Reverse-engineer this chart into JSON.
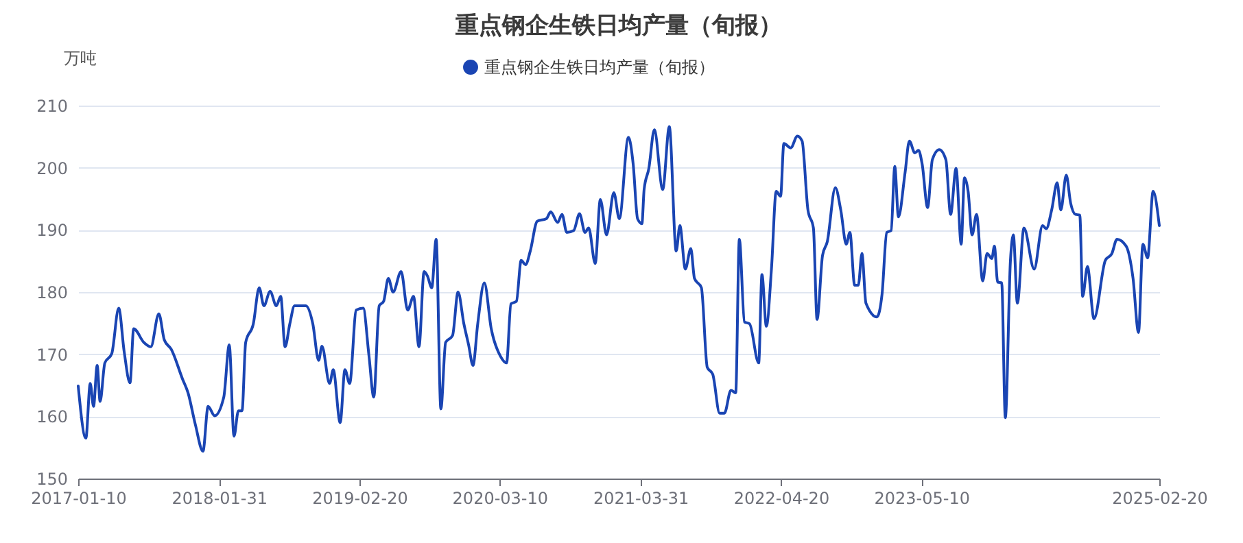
{
  "chart_data": {
    "type": "line",
    "title": "重点钢企生铁日均产量（旬报）",
    "ylabel": "万吨",
    "xlim": [
      "2017-01-10",
      "2025-02-20"
    ],
    "xticks": [
      "2017-01-10",
      "2018-01-31",
      "2019-02-20",
      "2020-03-10",
      "2021-03-31",
      "2022-04-20",
      "2023-05-10",
      "2025-02-20"
    ],
    "ylim": [
      150,
      210
    ],
    "yticks": [
      150,
      160,
      170,
      180,
      190,
      200,
      210
    ],
    "grid": "y",
    "legend": "top",
    "line_style": "solid",
    "x": [
      "2017-01-10",
      "2017-01-31",
      "2017-02-12",
      "2017-02-21",
      "2017-03-03",
      "2017-03-11",
      "2017-03-24",
      "2017-04-12",
      "2017-05-01",
      "2017-05-16",
      "2017-06-01",
      "2017-06-11",
      "2017-07-09",
      "2017-07-28",
      "2017-08-19",
      "2017-09-03",
      "2017-09-22",
      "2017-10-23",
      "2017-11-07",
      "2017-11-27",
      "2017-12-18",
      "2018-01-01",
      "2018-01-19",
      "2018-02-13",
      "2018-02-28",
      "2018-03-13",
      "2018-03-25",
      "2018-04-04",
      "2018-04-14",
      "2018-05-05",
      "2018-05-21",
      "2018-06-03",
      "2018-06-20",
      "2018-07-07",
      "2018-07-19",
      "2018-07-31",
      "2018-08-13",
      "2018-08-26",
      "2018-09-26",
      "2018-10-15",
      "2018-10-31",
      "2018-11-09",
      "2018-11-30",
      "2018-12-10",
      "2018-12-29",
      "2019-01-11",
      "2019-01-24",
      "2019-02-11",
      "2019-03-02",
      "2019-03-18",
      "2019-03-31",
      "2019-04-15",
      "2019-04-27",
      "2019-05-10",
      "2019-05-23",
      "2019-06-14",
      "2019-07-02",
      "2019-07-18",
      "2019-08-02",
      "2019-08-16",
      "2019-08-25",
      "2019-09-06",
      "2019-09-18",
      "2019-10-01",
      "2019-10-14",
      "2019-11-02",
      "2019-11-17",
      "2019-12-03",
      "2019-12-16",
      "2019-12-28",
      "2020-01-10",
      "2020-01-28",
      "2020-02-16",
      "2020-03-12",
      "2020-03-29",
      "2020-04-10",
      "2020-04-25",
      "2020-05-08",
      "2020-05-20",
      "2020-06-02",
      "2020-06-21",
      "2020-07-16",
      "2020-07-28",
      "2020-08-16",
      "2020-08-28",
      "2020-09-10",
      "2020-09-29",
      "2020-10-15",
      "2020-10-30",
      "2020-11-09",
      "2020-11-27",
      "2020-12-11",
      "2020-12-28",
      "2021-01-17",
      "2021-02-01",
      "2021-02-26",
      "2021-03-11",
      "2021-03-23",
      "2021-04-04",
      "2021-04-10",
      "2021-04-23",
      "2021-05-08",
      "2021-05-31",
      "2021-06-18",
      "2021-07-07",
      "2021-07-17",
      "2021-08-01",
      "2021-08-16",
      "2021-08-26",
      "2021-09-14",
      "2021-09-30",
      "2021-10-15",
      "2021-11-03",
      "2021-11-16",
      "2021-12-04",
      "2021-12-17",
      "2021-12-27",
      "2022-01-10",
      "2022-01-24",
      "2022-02-18",
      "2022-02-27",
      "2022-03-11",
      "2022-03-25",
      "2022-04-07",
      "2022-04-19",
      "2022-04-28",
      "2022-05-17",
      "2022-06-04",
      "2022-06-17",
      "2022-07-03",
      "2022-07-18",
      "2022-07-28",
      "2022-08-12",
      "2022-08-25",
      "2022-09-16",
      "2022-10-01",
      "2022-10-16",
      "2022-10-26",
      "2022-11-08",
      "2022-11-18",
      "2022-11-28",
      "2022-12-09",
      "2023-01-08",
      "2023-01-22",
      "2023-02-04",
      "2023-02-16",
      "2023-02-26",
      "2023-03-08",
      "2023-03-26",
      "2023-04-07",
      "2023-04-22",
      "2023-05-02",
      "2023-05-12",
      "2023-05-27",
      "2023-06-09",
      "2023-06-28",
      "2023-07-16",
      "2023-07-29",
      "2023-08-13",
      "2023-08-27",
      "2023-09-05",
      "2023-09-15",
      "2023-09-26",
      "2023-10-08",
      "2023-10-25",
      "2023-11-06",
      "2023-11-19",
      "2023-11-26",
      "2023-12-05",
      "2023-12-16",
      "2023-12-26",
      "2024-01-09",
      "2024-01-17",
      "2024-01-28",
      "2024-02-15",
      "2024-03-14",
      "2024-04-06",
      "2024-04-16",
      "2024-05-01",
      "2024-05-16",
      "2024-05-26",
      "2024-06-10",
      "2024-06-22",
      "2024-07-05",
      "2024-07-17",
      "2024-07-25",
      "2024-08-07",
      "2024-08-25",
      "2024-09-25",
      "2024-10-13",
      "2024-10-27",
      "2024-11-21",
      "2024-12-10",
      "2024-12-25",
      "2025-01-06",
      "2025-01-19",
      "2025-02-03",
      "2025-02-20"
    ],
    "series": [
      {
        "name": "重点钢企生铁日均产量（旬报）",
        "color": "#1a45b3",
        "values": [
          164.9,
          156.5,
          165.3,
          161.6,
          168.2,
          162.4,
          168.6,
          170.1,
          177.4,
          170.4,
          165.4,
          174.1,
          171.9,
          171.2,
          176.5,
          172.3,
          170.8,
          166.0,
          163.8,
          158.7,
          154.4,
          161.6,
          160.1,
          163.1,
          171.5,
          156.8,
          160.9,
          160.9,
          171.9,
          174.9,
          180.7,
          177.8,
          180.1,
          177.8,
          179.3,
          171.2,
          174.9,
          177.8,
          177.8,
          174.9,
          169.0,
          171.3,
          165.3,
          167.5,
          159.0,
          167.5,
          165.3,
          177.1,
          177.4,
          169.7,
          163.1,
          177.8,
          178.5,
          182.2,
          180.0,
          183.3,
          177.1,
          179.3,
          171.2,
          183.3,
          182.6,
          180.7,
          188.5,
          161.2,
          171.9,
          173.0,
          180.0,
          174.9,
          171.5,
          168.2,
          174.9,
          181.5,
          174.1,
          169.7,
          168.6,
          178.1,
          178.5,
          185.1,
          184.4,
          186.6,
          191.4,
          191.8,
          192.9,
          191.2,
          192.5,
          189.6,
          189.9,
          192.6,
          189.6,
          190.3,
          184.6,
          194.9,
          189.2,
          196.0,
          191.8,
          204.9,
          200.6,
          191.8,
          191.0,
          196.5,
          199.9,
          206.1,
          196.5,
          206.6,
          186.6,
          190.7,
          183.7,
          187.0,
          182.2,
          180.7,
          167.9,
          166.8,
          160.5,
          160.5,
          164.2,
          163.8,
          188.5,
          175.2,
          174.9,
          168.6,
          182.8,
          174.5,
          183.7,
          196.2,
          195.4,
          203.9,
          203.2,
          205.1,
          204.3,
          193.2,
          190.3,
          175.6,
          185.9,
          188.1,
          196.8,
          193.2,
          187.7,
          189.6,
          181.1,
          181.1,
          186.2,
          178.2,
          176.0,
          179.6,
          189.6,
          189.9,
          200.2,
          192.1,
          199.1,
          204.3,
          202.4,
          202.8,
          200.6,
          193.6,
          201.3,
          202.9,
          201.3,
          192.5,
          199.9,
          187.7,
          198.4,
          196.2,
          189.2,
          192.5,
          181.8,
          186.2,
          185.4,
          187.4,
          181.6,
          181.5,
          159.8,
          185.1,
          189.2,
          178.2,
          190.3,
          183.7,
          190.7,
          190.2,
          193.2,
          197.6,
          193.2,
          198.8,
          194.3,
          192.5,
          192.4,
          179.3,
          184.1,
          175.7,
          185.1,
          186.2,
          188.5,
          187.4,
          182.2,
          173.5,
          187.7,
          185.5,
          196.2,
          190.7
        ]
      }
    ]
  }
}
